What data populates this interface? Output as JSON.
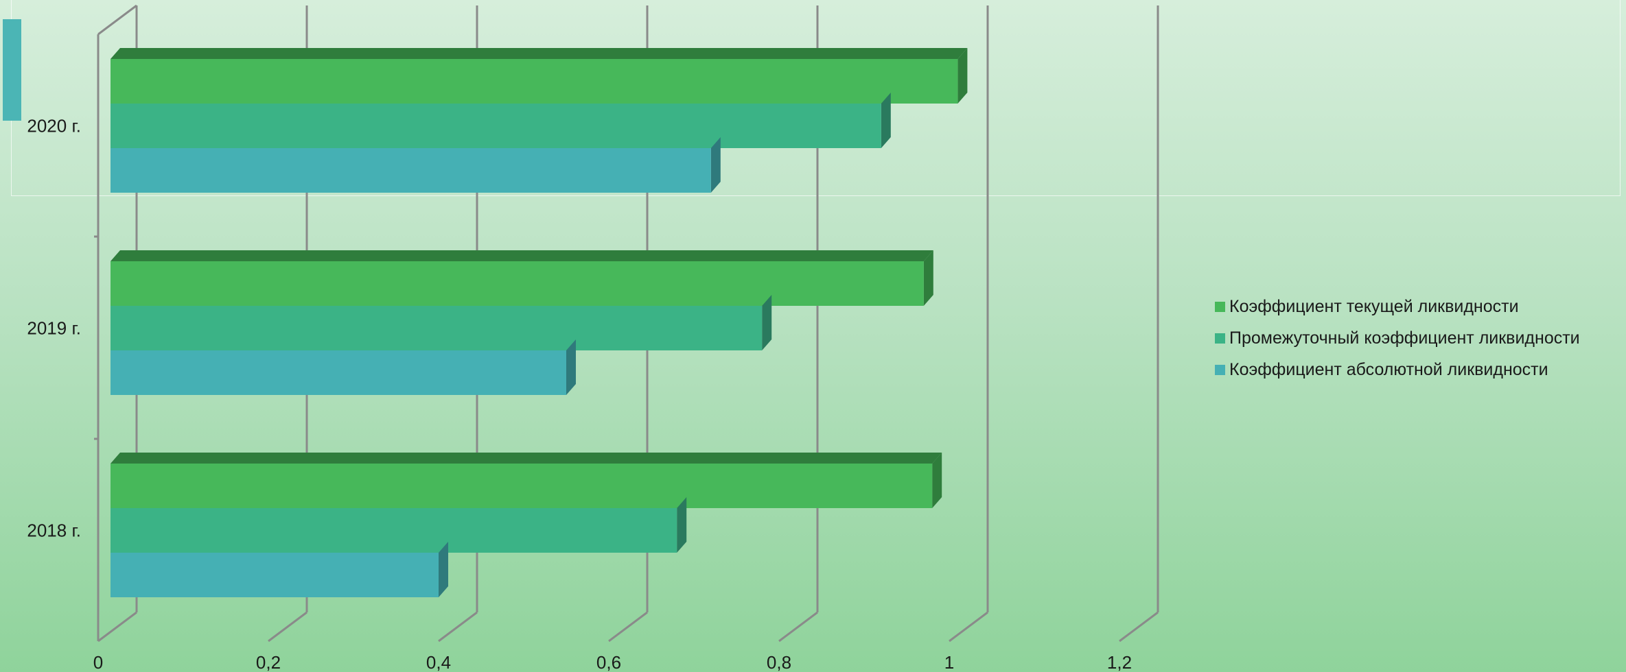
{
  "chart_data": {
    "type": "bar",
    "orientation": "horizontal",
    "categories": [
      "2018 г.",
      "2019 г.",
      "2020 г."
    ],
    "series": [
      {
        "name": "Коэффициент текущей ликвидности",
        "values": [
          0.98,
          0.97,
          1.01
        ],
        "color": "#47b85a",
        "side_color": "#2f7d3c"
      },
      {
        "name": "Промежуточный коэффициент ликвидности",
        "values": [
          0.68,
          0.78,
          0.92
        ],
        "color": "#3bb386",
        "side_color": "#2a7a5e"
      },
      {
        "name": "Коэффициент абсолютной ликвидности",
        "values": [
          0.4,
          0.55,
          0.72
        ],
        "color": "#45b0b4",
        "side_color": "#2f7a7c"
      }
    ],
    "x_ticks": [
      "0",
      "0,2",
      "0,4",
      "0,6",
      "0,8",
      "1",
      "1,2"
    ],
    "xlim": [
      0,
      1.2
    ],
    "grid": true,
    "legend_position": "right"
  }
}
